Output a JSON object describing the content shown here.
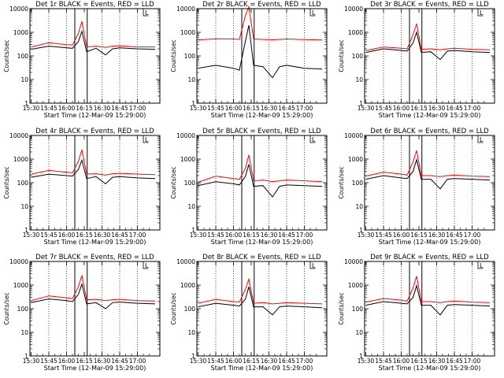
{
  "colors": {
    "events": "#000000",
    "lld": "#ff0000",
    "axes": "#000000",
    "grid": "#000000"
  },
  "shared": {
    "ylabel": "Counts/sec",
    "xlabel": "Start Time (12-Mar-09 15:29:00)",
    "x_ticks": [
      "15:30",
      "15:45",
      "16:00",
      "16:15",
      "16:30",
      "16:45",
      "17:00"
    ],
    "y_ticks": [
      "1",
      "10",
      "100",
      "1000",
      "10000"
    ],
    "ylim": [
      1,
      10000
    ],
    "yscale": "log",
    "xlim_minutes_after_1530": [
      -1,
      109
    ],
    "x_tick_minutes_after_1530": [
      0,
      15,
      30,
      45,
      60,
      75,
      90
    ],
    "grid": "dotted vertical lines at 15:45, 16:00, 16:30, 16:45, 17:00",
    "interval_lines_minutes_after_1530": [
      37,
      47.5
    ],
    "marker_label": "L",
    "marker_minutes_after_1530": [
      95,
      96
    ]
  },
  "chart_data": [
    {
      "type": "line",
      "title": "Det 1r BLACK = Events, RED = LLD",
      "series": [
        {
          "name": "Events",
          "color": "#000000",
          "x": [
            0,
            15,
            30,
            35,
            40,
            43,
            47,
            55,
            63,
            69,
            75,
            90,
            105
          ],
          "y": [
            190,
            260,
            220,
            210,
            400,
            1100,
            150,
            210,
            110,
            200,
            220,
            200,
            190
          ]
        },
        {
          "name": "LLD",
          "color": "#ff0000",
          "x": [
            0,
            15,
            30,
            35,
            40,
            43,
            47,
            55,
            63,
            69,
            75,
            90,
            105
          ],
          "y": [
            240,
            360,
            300,
            290,
            900,
            2900,
            240,
            260,
            230,
            260,
            270,
            240,
            240
          ]
        }
      ]
    },
    {
      "type": "line",
      "title": "Det 2r BLACK = Events, RED = LLD",
      "series": [
        {
          "name": "Events",
          "color": "#000000",
          "x": [
            0,
            15,
            30,
            35,
            40,
            43,
            47,
            55,
            63,
            69,
            75,
            90,
            105
          ],
          "y": [
            30,
            40,
            30,
            25,
            400,
            2000,
            40,
            35,
            12,
            35,
            40,
            30,
            28
          ]
        },
        {
          "name": "LLD",
          "color": "#ff0000",
          "x": [
            0,
            15,
            30,
            35,
            40,
            43,
            47,
            55,
            63,
            69,
            75,
            90,
            105
          ],
          "y": [
            480,
            530,
            520,
            500,
            5000,
            12000,
            520,
            500,
            480,
            500,
            520,
            490,
            470
          ]
        }
      ]
    },
    {
      "type": "line",
      "title": "Det 3r BLACK = Events, RED = LLD",
      "series": [
        {
          "name": "Events",
          "color": "#000000",
          "x": [
            0,
            15,
            30,
            35,
            40,
            43,
            47,
            55,
            63,
            69,
            75,
            90,
            105
          ],
          "y": [
            140,
            200,
            170,
            160,
            350,
            1000,
            140,
            150,
            70,
            160,
            170,
            150,
            140
          ]
        },
        {
          "name": "LLD",
          "color": "#ff0000",
          "x": [
            0,
            15,
            30,
            35,
            40,
            43,
            47,
            55,
            63,
            69,
            75,
            90,
            105
          ],
          "y": [
            170,
            240,
            210,
            200,
            800,
            2300,
            190,
            200,
            180,
            200,
            210,
            190,
            180
          ]
        }
      ]
    },
    {
      "type": "line",
      "title": "Det 4r BLACK = Events, RED = LLD",
      "series": [
        {
          "name": "Events",
          "color": "#000000",
          "x": [
            0,
            15,
            30,
            35,
            40,
            43,
            47,
            55,
            63,
            69,
            75,
            90,
            105
          ],
          "y": [
            170,
            230,
            200,
            190,
            360,
            900,
            150,
            180,
            90,
            170,
            180,
            160,
            150
          ]
        },
        {
          "name": "LLD",
          "color": "#ff0000",
          "x": [
            0,
            15,
            30,
            35,
            40,
            43,
            47,
            55,
            63,
            69,
            75,
            90,
            105
          ],
          "y": [
            230,
            330,
            280,
            260,
            800,
            2500,
            230,
            240,
            210,
            240,
            250,
            230,
            220
          ]
        }
      ]
    },
    {
      "type": "line",
      "title": "Det 5r BLACK = Events, RED = LLD",
      "series": [
        {
          "name": "Events",
          "color": "#000000",
          "x": [
            0,
            15,
            30,
            35,
            40,
            43,
            47,
            55,
            63,
            69,
            75,
            90,
            105
          ],
          "y": [
            75,
            110,
            90,
            80,
            180,
            600,
            70,
            75,
            25,
            70,
            80,
            75,
            70
          ]
        },
        {
          "name": "LLD",
          "color": "#ff0000",
          "x": [
            0,
            15,
            30,
            35,
            40,
            43,
            47,
            55,
            63,
            69,
            75,
            90,
            105
          ],
          "y": [
            105,
            190,
            150,
            140,
            400,
            1500,
            120,
            130,
            110,
            120,
            130,
            120,
            110
          ]
        }
      ]
    },
    {
      "type": "line",
      "title": "Det 6r BLACK = Events, RED = LLD",
      "series": [
        {
          "name": "Events",
          "color": "#000000",
          "x": [
            0,
            15,
            30,
            35,
            40,
            43,
            47,
            55,
            63,
            69,
            75,
            90,
            105
          ],
          "y": [
            140,
            200,
            160,
            150,
            300,
            950,
            140,
            140,
            55,
            140,
            150,
            140,
            130
          ]
        },
        {
          "name": "LLD",
          "color": "#ff0000",
          "x": [
            0,
            15,
            30,
            35,
            40,
            43,
            47,
            55,
            63,
            69,
            75,
            90,
            105
          ],
          "y": [
            190,
            280,
            230,
            210,
            750,
            2300,
            200,
            200,
            180,
            200,
            210,
            190,
            180
          ]
        }
      ]
    },
    {
      "type": "line",
      "title": "Det 7r BLACK = Events, RED = LLD",
      "series": [
        {
          "name": "Events",
          "color": "#000000",
          "x": [
            0,
            15,
            30,
            35,
            40,
            43,
            47,
            55,
            63,
            69,
            75,
            90,
            105
          ],
          "y": [
            180,
            260,
            220,
            200,
            400,
            1100,
            160,
            180,
            100,
            180,
            190,
            170,
            160
          ]
        },
        {
          "name": "LLD",
          "color": "#ff0000",
          "x": [
            0,
            15,
            30,
            35,
            40,
            43,
            47,
            55,
            63,
            69,
            75,
            90,
            105
          ],
          "y": [
            220,
            350,
            290,
            270,
            850,
            2600,
            240,
            250,
            220,
            240,
            250,
            220,
            210
          ]
        }
      ]
    },
    {
      "type": "line",
      "title": "Det 8r BLACK = Events, RED = LLD",
      "series": [
        {
          "name": "Events",
          "color": "#000000",
          "x": [
            0,
            15,
            30,
            35,
            40,
            43,
            47,
            55,
            63,
            69,
            75,
            90,
            105
          ],
          "y": [
            120,
            170,
            140,
            130,
            250,
            850,
            120,
            120,
            55,
            120,
            130,
            120,
            110
          ]
        },
        {
          "name": "LLD",
          "color": "#ff0000",
          "x": [
            0,
            15,
            30,
            35,
            40,
            43,
            47,
            55,
            63,
            69,
            75,
            90,
            105
          ],
          "y": [
            170,
            250,
            200,
            190,
            650,
            1800,
            170,
            180,
            160,
            170,
            180,
            170,
            160
          ]
        }
      ]
    },
    {
      "type": "line",
      "title": "Det 9r BLACK = Events, RED = LLD",
      "series": [
        {
          "name": "Events",
          "color": "#000000",
          "x": [
            0,
            15,
            30,
            35,
            40,
            43,
            47,
            55,
            63,
            69,
            75,
            90,
            105
          ],
          "y": [
            140,
            200,
            170,
            160,
            300,
            950,
            140,
            140,
            55,
            140,
            150,
            140,
            130
          ]
        },
        {
          "name": "LLD",
          "color": "#ff0000",
          "x": [
            0,
            15,
            30,
            35,
            40,
            43,
            47,
            55,
            63,
            69,
            75,
            90,
            105
          ],
          "y": [
            190,
            270,
            230,
            210,
            750,
            2400,
            200,
            200,
            180,
            200,
            210,
            190,
            180
          ]
        }
      ]
    }
  ]
}
